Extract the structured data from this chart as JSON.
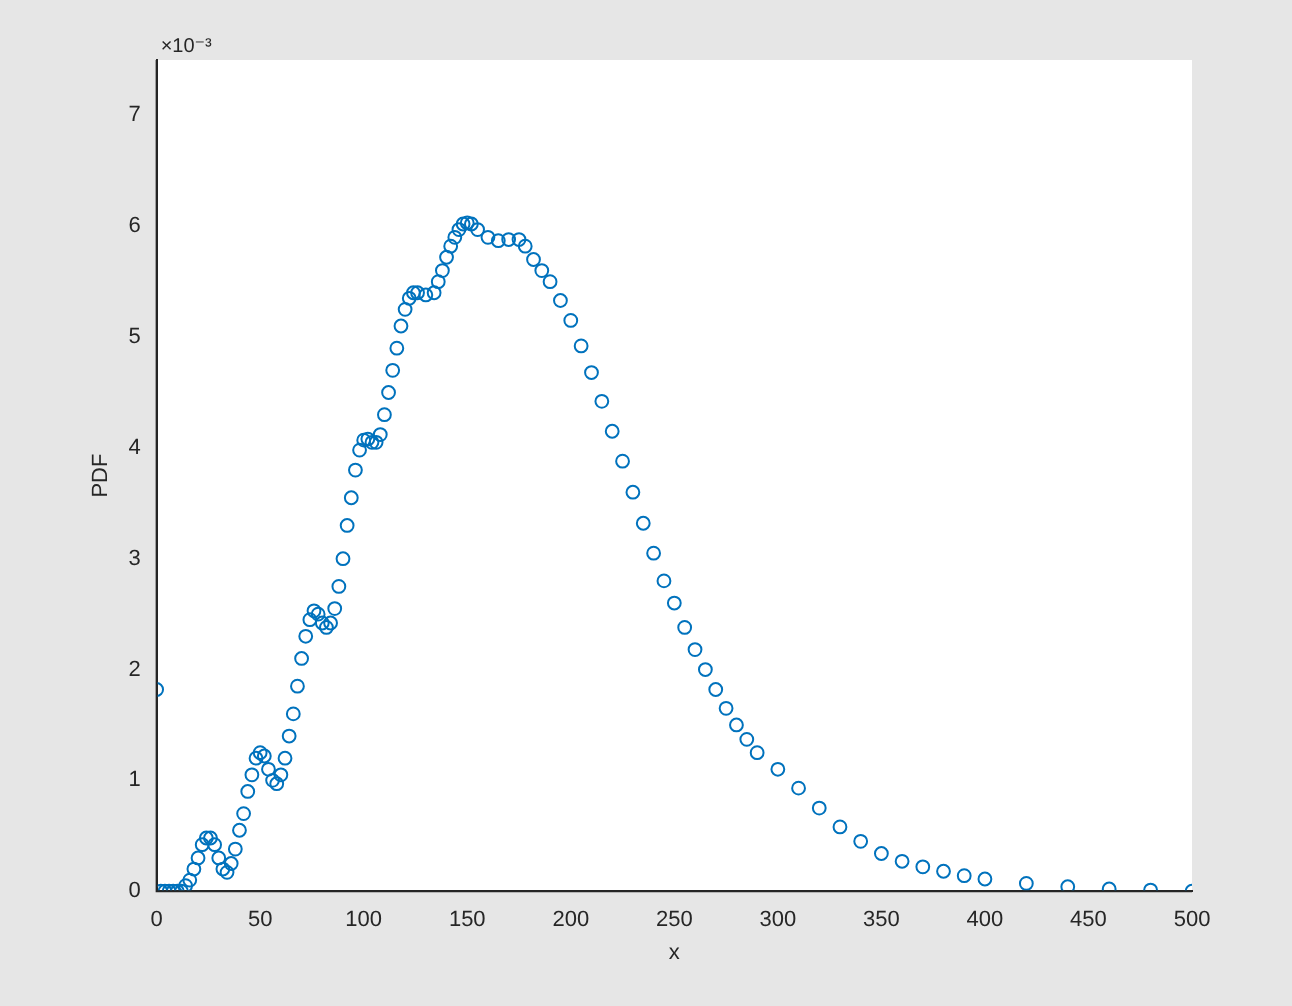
{
  "chart_data": {
    "type": "scatter",
    "xlabel": "x",
    "ylabel": "PDF",
    "annotations": [
      "×10⁻³"
    ],
    "marker": "circle",
    "grid": false,
    "legend": false,
    "xlim": [
      0,
      500
    ],
    "xticks": [
      0,
      50,
      100,
      150,
      200,
      250,
      300,
      350,
      400,
      450,
      500
    ],
    "ylim": [
      0,
      7.5
    ],
    "yticks": [
      0,
      1,
      2,
      3,
      4,
      5,
      6,
      7
    ],
    "series": [
      {
        "color": "#0072bd",
        "x": [
          0,
          2,
          4,
          6,
          8,
          10,
          12,
          14,
          16,
          18,
          20,
          22,
          24,
          26,
          28,
          30,
          32,
          34,
          36,
          38,
          40,
          42,
          44,
          46,
          48,
          50,
          52,
          54,
          56,
          58,
          60,
          62,
          64,
          66,
          68,
          70,
          72,
          74,
          76,
          78,
          80,
          82,
          84,
          86,
          88,
          90,
          92,
          94,
          96,
          98,
          100,
          102,
          104,
          106,
          108,
          110,
          112,
          114,
          116,
          118,
          120,
          122,
          124,
          126,
          130,
          134,
          136,
          138,
          140,
          142,
          144,
          146,
          148,
          150,
          152,
          155,
          160,
          165,
          170,
          175,
          178,
          182,
          186,
          190,
          195,
          200,
          205,
          210,
          215,
          220,
          225,
          230,
          235,
          240,
          245,
          250,
          255,
          260,
          265,
          270,
          275,
          280,
          285,
          290,
          300,
          310,
          320,
          330,
          340,
          350,
          360,
          370,
          380,
          390,
          400,
          420,
          440,
          460,
          480,
          500
        ],
        "values": [
          1.82,
          0,
          0,
          0,
          0,
          0,
          0,
          0.05,
          0.1,
          0.2,
          0.3,
          0.42,
          0.48,
          0.48,
          0.42,
          0.3,
          0.2,
          0.17,
          0.25,
          0.38,
          0.55,
          0.7,
          0.9,
          1.05,
          1.2,
          1.25,
          1.22,
          1.1,
          1,
          0.97,
          1.05,
          1.2,
          1.4,
          1.6,
          1.85,
          2.1,
          2.3,
          2.45,
          2.53,
          2.5,
          2.42,
          2.38,
          2.42,
          2.55,
          2.75,
          3,
          3.3,
          3.55,
          3.8,
          3.98,
          4.07,
          4.08,
          4.05,
          4.05,
          4.12,
          4.3,
          4.5,
          4.7,
          4.9,
          5.1,
          5.25,
          5.35,
          5.4,
          5.4,
          5.38,
          5.4,
          5.5,
          5.6,
          5.72,
          5.82,
          5.9,
          5.97,
          6.02,
          6.03,
          6.02,
          5.97,
          5.9,
          5.87,
          5.88,
          5.88,
          5.82,
          5.7,
          5.6,
          5.5,
          5.33,
          5.15,
          4.92,
          4.68,
          4.42,
          4.15,
          3.88,
          3.6,
          3.32,
          3.05,
          2.8,
          2.6,
          2.38,
          2.18,
          2,
          1.82,
          1.65,
          1.5,
          1.37,
          1.25,
          1.1,
          0.93,
          0.75,
          0.58,
          0.45,
          0.34,
          0.27,
          0.22,
          0.18,
          0.14,
          0.11,
          0.07,
          0.04,
          0.02,
          0.01,
          0
        ]
      }
    ]
  }
}
